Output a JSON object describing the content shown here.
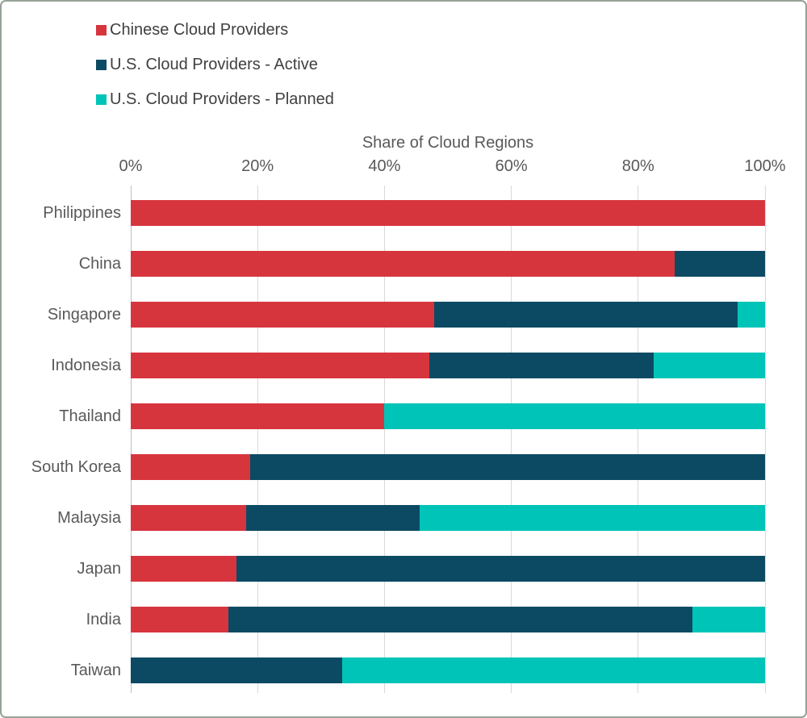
{
  "colors": {
    "chinese": "#d7353e",
    "us_active": "#0c4a63",
    "us_planned": "#00c4b7",
    "gridline": "#d9d9d9",
    "axis_line": "#bfbfbf",
    "label_text": "#595959",
    "legend_text": "#404040"
  },
  "legend": {
    "items": [
      {
        "label": "Chinese Cloud Providers",
        "color": "#d7353e"
      },
      {
        "label": "U.S. Cloud Providers - Active",
        "color": "#0c4a63"
      },
      {
        "label": "U.S. Cloud Providers - Planned",
        "color": "#00c4b7"
      }
    ]
  },
  "chart_data": {
    "type": "bar",
    "orientation": "horizontal",
    "stacked": true,
    "title": "Share of Cloud Regions",
    "categories": [
      "Philippines",
      "China",
      "Singapore",
      "Indonesia",
      "Thailand",
      "South Korea",
      "Malaysia",
      "Japan",
      "India",
      "Taiwan"
    ],
    "series": [
      {
        "name": "Chinese Cloud Providers",
        "color": "#d7353e",
        "values": [
          100,
          85.7,
          47.9,
          47.1,
          40,
          18.8,
          18.2,
          16.7,
          15.4,
          0
        ]
      },
      {
        "name": "U.S. Cloud Providers - Active",
        "color": "#0c4a63",
        "values": [
          0,
          14.3,
          47.8,
          35.3,
          0,
          81.2,
          27.3,
          83.3,
          73.1,
          33.3
        ]
      },
      {
        "name": "U.S. Cloud Providers - Planned",
        "color": "#00c4b7",
        "values": [
          0,
          0,
          4.3,
          17.6,
          60,
          0,
          54.5,
          0,
          11.5,
          66.7
        ]
      }
    ],
    "x_ticks": [
      "0%",
      "20%",
      "40%",
      "60%",
      "80%",
      "100%"
    ],
    "xlim": [
      0,
      100
    ],
    "grid": true,
    "legend_position": "top-left"
  }
}
